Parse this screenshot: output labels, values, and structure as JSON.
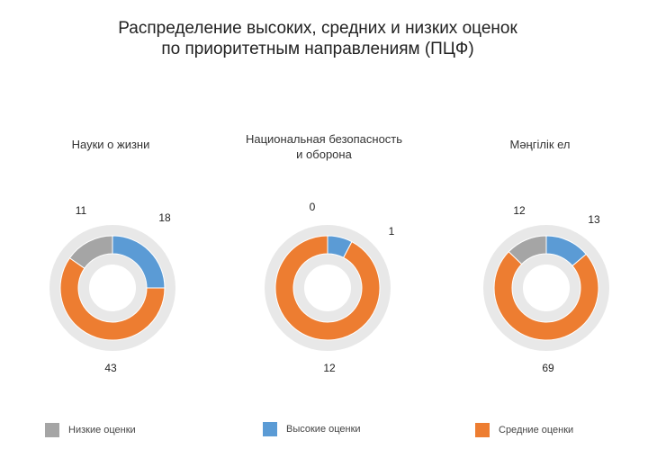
{
  "title_line1": "Распределение высоких, средних и низких оценок",
  "title_line2": "по приоритетным направлениям (ПЦФ)",
  "colors": {
    "low": "#a5a5a5",
    "high": "#5b9bd5",
    "medium": "#ed7d31",
    "ring_bg": "#e8e8e8"
  },
  "legend": [
    {
      "key": "low",
      "label": "Низкие оценки"
    },
    {
      "key": "high",
      "label": "Высокие оценки"
    },
    {
      "key": "medium",
      "label": "Средние оценки"
    }
  ],
  "chart_data": [
    {
      "type": "pie",
      "title_line1": "Науки о жизни",
      "title_line2": "",
      "categories": [
        "Высокие оценки",
        "Средние оценки",
        "Низкие оценки"
      ],
      "values": [
        18,
        43,
        11
      ],
      "labels": [
        "18",
        "43",
        "11"
      ]
    },
    {
      "type": "pie",
      "title_line1": "Национальная безопасность",
      "title_line2": "и оборона",
      "categories": [
        "Высокие оценки",
        "Средние оценки",
        "Низкие оценки"
      ],
      "values": [
        1,
        12,
        0
      ],
      "labels": [
        "1",
        "12",
        "0"
      ]
    },
    {
      "type": "pie",
      "title_line1": "Мәңгілік ел",
      "title_line2": "",
      "categories": [
        "Высокие оценки",
        "Средние оценки",
        "Низкие оценки"
      ],
      "values": [
        13,
        69,
        12
      ],
      "labels": [
        "13",
        "69",
        "12"
      ]
    }
  ]
}
